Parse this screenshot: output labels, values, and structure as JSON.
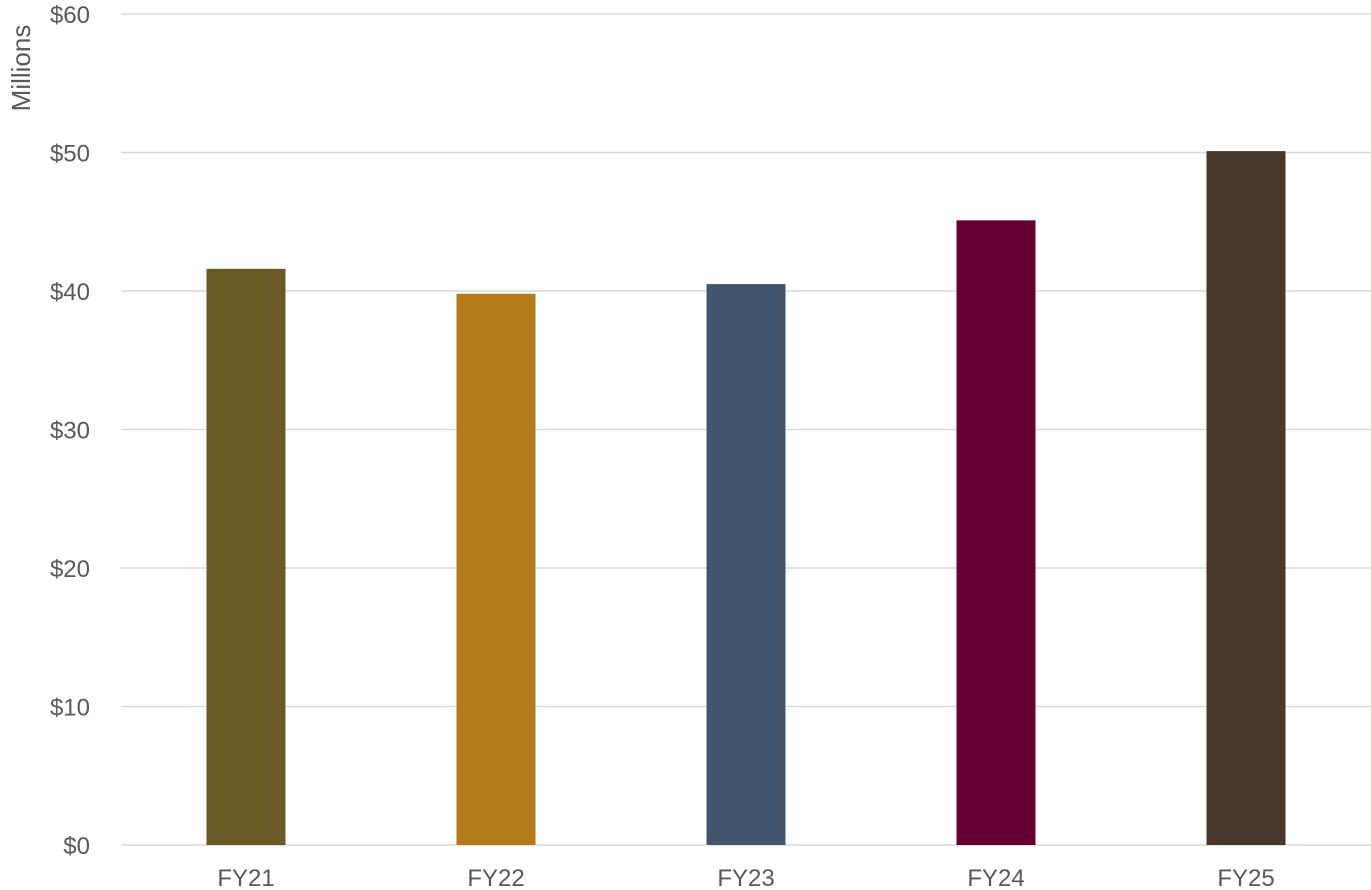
{
  "chart_data": {
    "type": "bar",
    "title": "",
    "xlabel": "",
    "ylabel": "Millions",
    "categories": [
      "FY21",
      "FY22",
      "FY23",
      "FY24",
      "FY25"
    ],
    "values": [
      41.6,
      39.8,
      40.5,
      45.1,
      50.1
    ],
    "colors": [
      "#695A26",
      "#B57A1A",
      "#43556D",
      "#650030",
      "#48382A"
    ],
    "ylim": [
      0,
      60
    ],
    "yticks": [
      0,
      10,
      20,
      30,
      40,
      50,
      60
    ],
    "ytick_labels": [
      "$0",
      "$10",
      "$20",
      "$30",
      "$40",
      "$50",
      "$60"
    ],
    "grid": true,
    "legend": "none"
  }
}
